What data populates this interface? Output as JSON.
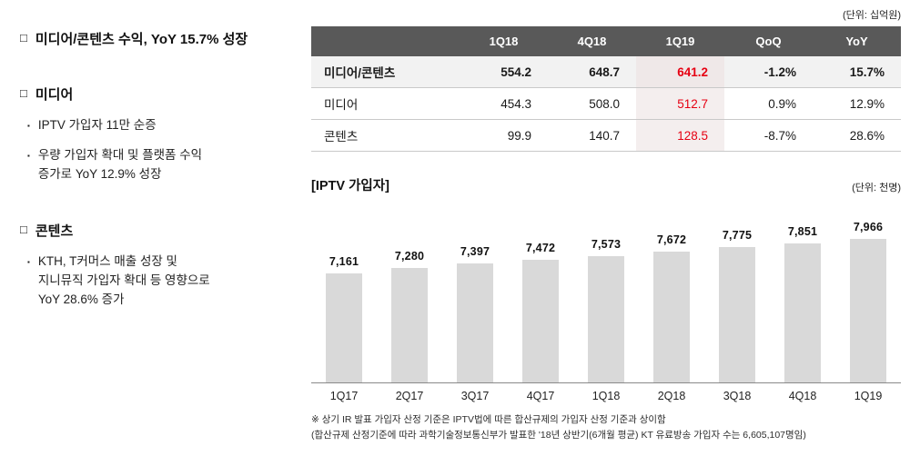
{
  "left_panel": {
    "section_marker": "□",
    "bullet_marker": "▪",
    "sections": [
      {
        "title": "미디어/콘텐츠 수익, YoY 15.7% 성장",
        "bullets": []
      },
      {
        "title": "미디어",
        "bullets": [
          "IPTV 가입자 11만 순증",
          "우량 가입자 확대 및 플랫폼 수익\n증가로 YoY 12.9% 성장"
        ]
      },
      {
        "title": "콘텐츠",
        "bullets": [
          "KTH, T커머스 매출 성장 및\n지니뮤직 가입자 확대 등 영향으로\nYoY 28.6% 증가"
        ]
      }
    ]
  },
  "table": {
    "unit_label": "(단위: 십억원)",
    "columns": [
      "",
      "1Q18",
      "4Q18",
      "1Q19",
      "QoQ",
      "YoY"
    ],
    "highlight_column": "1Q19",
    "highlight_text_color": "#e60012",
    "header_bg_color": "#595959",
    "rows": [
      {
        "label": "미디어/콘텐츠",
        "bold": true,
        "values": [
          "554.2",
          "648.7",
          "641.2",
          "-1.2%",
          "15.7%"
        ]
      },
      {
        "label": "미디어",
        "bold": false,
        "values": [
          "454.3",
          "508.0",
          "512.7",
          "0.9%",
          "12.9%"
        ]
      },
      {
        "label": "콘텐츠",
        "bold": false,
        "values": [
          "99.9",
          "140.7",
          "128.5",
          "-8.7%",
          "28.6%"
        ]
      }
    ]
  },
  "chart_data": {
    "type": "bar",
    "title": "[IPTV 가입자]",
    "unit_label": "(단위: 천명)",
    "categories": [
      "1Q17",
      "2Q17",
      "3Q17",
      "4Q17",
      "1Q18",
      "2Q18",
      "3Q18",
      "4Q18",
      "1Q19"
    ],
    "values": [
      7161,
      7280,
      7397,
      7472,
      7573,
      7672,
      7775,
      7851,
      7966
    ],
    "value_labels": [
      "7,161",
      "7,280",
      "7,397",
      "7,472",
      "7,573",
      "7,672",
      "7,775",
      "7,851",
      "7,966"
    ],
    "bar_color": "#d9d9d9",
    "grid": false,
    "legend": "none",
    "ylim_effective": [
      7000,
      8100
    ]
  },
  "footnote": {
    "line1": "※ 상기 IR 발표 가입자 산정 기준은 IPTV법에 따른 합산규제의 가입자 산정 기준과 상이함",
    "line2": "(합산규제 산정기준에 따라 과학기술정보통신부가 발표한 '18년 상반기(6개월 평균) KT 유료방송 가입자 수는 6,605,107명임)"
  }
}
